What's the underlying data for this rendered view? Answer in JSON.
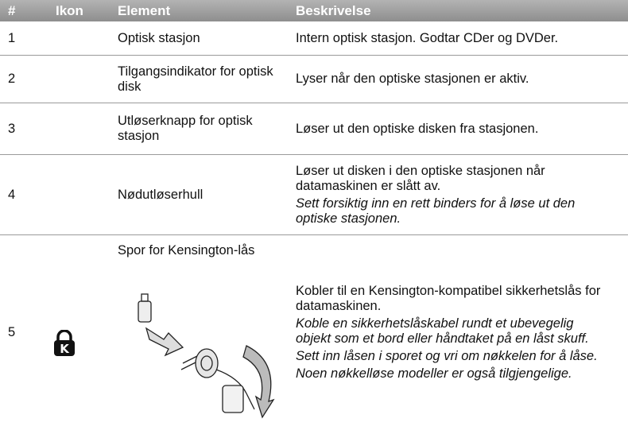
{
  "table": {
    "header": [
      "#",
      "Ikon",
      "Element",
      "Beskrivelse"
    ],
    "rows": [
      {
        "number": "1",
        "element": "Optisk stasjon",
        "description": "Intern optisk stasjon. Godtar CDer og DVDer.",
        "notes": []
      },
      {
        "number": "2",
        "element": "Tilgangsindikator for optisk disk",
        "description": "Lyser når den optiske stasjonen er aktiv.",
        "notes": []
      },
      {
        "number": "3",
        "element": "Utløserknapp for optisk stasjon",
        "description": "Løser ut den optiske disken fra stasjonen.",
        "notes": []
      },
      {
        "number": "4",
        "element": "Nødutløserhull",
        "description": "Løser ut disken i den optiske stasjonen når datamaskinen er slått av.",
        "notes": [
          "Sett forsiktig inn en rett binders for å løse ut den optiske stasjonen."
        ]
      },
      {
        "number": "5",
        "element": "Spor for Kensington-lås",
        "description": "Kobler til en Kensington-kompatibel sikkerhetslås for datamaskinen.",
        "notes": [
          "Koble en sikkerhetslåskabel rundt et ubevegelig objekt som et bord eller håndtaket på en låst skuff.",
          "Sett inn låsen i sporet og vri om nøkkelen for å låse.",
          "Noen nøkkelløse modeller er også tilgjengelige."
        ]
      }
    ]
  }
}
